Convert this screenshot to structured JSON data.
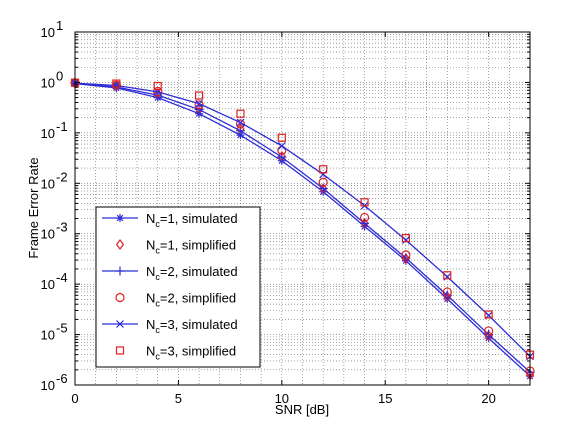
{
  "chart_data": {
    "type": "line",
    "xlabel": "SNR [dB]",
    "ylabel": "Frame Error Rate",
    "xlim": [
      0,
      22
    ],
    "ylim": [
      1e-06,
      10
    ],
    "yscale": "log",
    "grid": true,
    "legend_placement": "bottom-left",
    "x_ticks": [
      0,
      5,
      10,
      15,
      20
    ],
    "x_tick_labels": [
      "0",
      "5",
      "10",
      "15",
      "20"
    ],
    "y_ticks": [
      1e-06,
      1e-05,
      0.0001,
      0.001,
      0.01,
      0.1,
      1,
      10
    ],
    "y_tick_labels": [
      {
        "base": "10",
        "exp": "-6"
      },
      {
        "base": "10",
        "exp": "-5"
      },
      {
        "base": "10",
        "exp": "-4"
      },
      {
        "base": "10",
        "exp": "-3"
      },
      {
        "base": "10",
        "exp": "-2"
      },
      {
        "base": "10",
        "exp": "-1"
      },
      {
        "base": "10",
        "exp": "0"
      },
      {
        "base": "10",
        "exp": "1"
      }
    ],
    "series": [
      {
        "name": "N_c=1, simulated",
        "legend_main": "N",
        "legend_sub": "c",
        "legend_rest": "=1, simulated",
        "style": "line-star",
        "color": "#2d2dd6",
        "x": [
          0,
          2,
          4,
          6,
          8,
          10,
          12,
          14,
          16,
          18,
          20,
          22
        ],
        "y": [
          0.95,
          0.78,
          0.5,
          0.24,
          0.09,
          0.028,
          0.0068,
          0.0014,
          0.00029,
          5.1e-05,
          8.5e-06,
          1.5e-06
        ]
      },
      {
        "name": "N_c=1, simplified",
        "legend_main": "N",
        "legend_sub": "c",
        "legend_rest": "=1, simplified",
        "style": "diamond",
        "color": "#e02020",
        "x": [
          0,
          2,
          4,
          6,
          8,
          10,
          12,
          14,
          16,
          18,
          20,
          22
        ],
        "y": [
          0.97,
          0.85,
          0.6,
          0.3,
          0.12,
          0.034,
          0.0078,
          0.0016,
          0.00032,
          5.7e-05,
          9.5e-06,
          1.6e-06
        ]
      },
      {
        "name": "N_c=2, simulated",
        "legend_main": "N",
        "legend_sub": "c",
        "legend_rest": "=2, simulated",
        "style": "line-plus",
        "color": "#2d2dd6",
        "x": [
          0,
          2,
          4,
          6,
          8,
          10,
          12,
          14,
          16,
          18,
          20,
          22
        ],
        "y": [
          0.96,
          0.81,
          0.56,
          0.29,
          0.11,
          0.033,
          0.0079,
          0.0016,
          0.00033,
          6e-05,
          1e-05,
          1.8e-06
        ]
      },
      {
        "name": "N_c=2, simplified",
        "legend_main": "N",
        "legend_sub": "c",
        "legend_rest": "=2, simplified",
        "style": "circle",
        "color": "#e02020",
        "x": [
          0,
          2,
          4,
          6,
          8,
          10,
          12,
          14,
          16,
          18,
          20,
          22
        ],
        "y": [
          0.98,
          0.88,
          0.66,
          0.36,
          0.15,
          0.045,
          0.0105,
          0.0021,
          0.00038,
          7e-05,
          1.18e-05,
          1.9e-06
        ]
      },
      {
        "name": "N_c=3, simulated",
        "legend_main": "N",
        "legend_sub": "c",
        "legend_rest": "=3, simulated",
        "style": "line-x",
        "color": "#2d2dd6",
        "x": [
          0,
          2,
          4,
          6,
          8,
          10,
          12,
          14,
          16,
          18,
          20,
          22
        ],
        "y": [
          0.97,
          0.87,
          0.65,
          0.38,
          0.16,
          0.055,
          0.015,
          0.0036,
          0.00075,
          0.00014,
          2.4e-05,
          3.7e-06
        ]
      },
      {
        "name": "N_c=3, simplified",
        "legend_main": "N",
        "legend_sub": "c",
        "legend_rest": "=3, simplified",
        "style": "square",
        "color": "#e02020",
        "x": [
          0,
          2,
          4,
          6,
          8,
          10,
          12,
          14,
          16,
          18,
          20,
          22
        ],
        "y": [
          0.99,
          0.95,
          0.85,
          0.55,
          0.24,
          0.08,
          0.019,
          0.0042,
          0.00082,
          0.00015,
          2.5e-05,
          4e-06
        ]
      }
    ]
  }
}
